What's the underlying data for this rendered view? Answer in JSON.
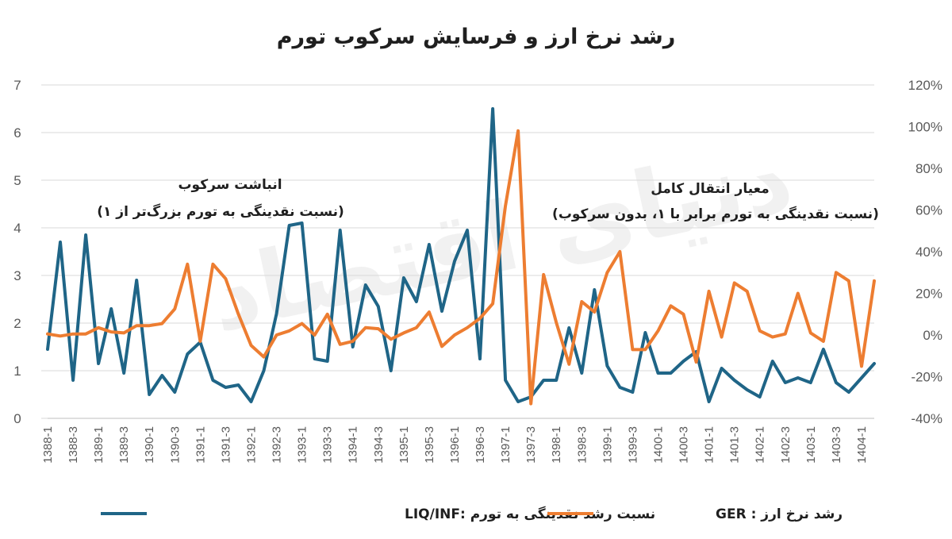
{
  "chart_data": {
    "type": "line",
    "title": "رشد نرخ ارز و فرسایش سرکوب تورم",
    "categories": [
      "1388-1",
      "1388-2",
      "1388-3",
      "1388-4",
      "1389-1",
      "1389-2",
      "1389-3",
      "1389-4",
      "1390-1",
      "1390-2",
      "1390-3",
      "1390-4",
      "1391-1",
      "1391-2",
      "1391-3",
      "1391-4",
      "1392-1",
      "1392-2",
      "1392-3",
      "1392-4",
      "1393-1",
      "1393-2",
      "1393-3",
      "1393-4",
      "1394-1",
      "1394-2",
      "1394-3",
      "1394-4",
      "1395-1",
      "1395-2",
      "1395-3",
      "1395-4",
      "1396-1",
      "1396-2",
      "1396-3",
      "1396-4",
      "1397-1",
      "1397-2",
      "1397-3",
      "1397-4",
      "1398-1",
      "1398-2",
      "1398-3",
      "1398-4",
      "1399-1",
      "1399-2",
      "1399-3",
      "1399-4",
      "1400-1",
      "1400-2",
      "1400-3",
      "1400-4",
      "1401-1",
      "1401-2",
      "1401-3",
      "1401-4",
      "1402-1",
      "1402-2",
      "1402-3",
      "1402-4",
      "1403-1",
      "1403-2",
      "1403-3",
      "1403-4",
      "1404-1",
      "1404-2"
    ],
    "x_tick_labels": [
      "1388-1",
      "1388-3",
      "1389-1",
      "1389-3",
      "1390-1",
      "1390-3",
      "1391-1",
      "1391-3",
      "1392-1",
      "1392-3",
      "1393-1",
      "1393-3",
      "1394-1",
      "1394-3",
      "1395-1",
      "1395-3",
      "1396-1",
      "1396-3",
      "1397-1",
      "1397-3",
      "1398-1",
      "1398-3",
      "1399-1",
      "1399-3",
      "1400-1",
      "1400-3",
      "1401-1",
      "1401-3",
      "1402-1",
      "1402-3",
      "1403-1",
      "1403-3",
      "1404-1"
    ],
    "y_left": {
      "min": 0,
      "max": 7,
      "ticks": [
        "0",
        "1",
        "2",
        "3",
        "4",
        "5",
        "6",
        "7"
      ]
    },
    "y_right": {
      "min": -40,
      "max": 120,
      "ticks": [
        "-40%",
        "-20%",
        "0%",
        "20%",
        "40%",
        "60%",
        "80%",
        "100%",
        "120%"
      ]
    },
    "grid": true,
    "legend_position": "bottom",
    "series": [
      {
        "name": "نسبت رشد نقدینگی به تورم :LIQ/INF",
        "axis": "left",
        "color": "#1f6587",
        "values": [
          1.45,
          3.7,
          0.8,
          3.85,
          1.15,
          2.3,
          0.95,
          2.9,
          0.5,
          0.9,
          0.55,
          1.35,
          1.6,
          0.8,
          0.65,
          0.7,
          0.35,
          1.0,
          2.2,
          4.05,
          4.1,
          1.25,
          1.2,
          3.95,
          1.5,
          2.8,
          2.35,
          1.0,
          2.95,
          2.45,
          3.65,
          2.25,
          3.3,
          3.95,
          1.25,
          6.5,
          0.8,
          0.35,
          0.45,
          0.8,
          0.8,
          1.9,
          0.95,
          2.7,
          1.1,
          0.65,
          0.55,
          1.8,
          0.95,
          0.95,
          1.2,
          1.4,
          0.35,
          1.05,
          0.8,
          0.6,
          0.45,
          1.2,
          0.75,
          0.85,
          0.75,
          1.45,
          0.75,
          0.55,
          0.85,
          1.15
        ]
      },
      {
        "name": "رشد نرخ ارز : GER",
        "axis": "right",
        "color": "#ed7d31",
        "values": [
          0.5,
          -0.5,
          0.5,
          0.5,
          3.5,
          1.5,
          1.0,
          4.5,
          4.5,
          5.5,
          12.5,
          34.0,
          -3.0,
          34.0,
          27.0,
          10.0,
          -5.0,
          -10.5,
          0.0,
          2.0,
          5.5,
          0.0,
          10.0,
          -4.5,
          -3.0,
          3.5,
          3.0,
          -2.0,
          1.0,
          3.5,
          11.0,
          -5.5,
          0.0,
          3.5,
          8.0,
          15.0,
          62.0,
          98.0,
          -33.0,
          29.0,
          6.0,
          -14.0,
          16.0,
          11.0,
          30.0,
          40.0,
          -7.0,
          -7.0,
          2.0,
          14.0,
          10.0,
          -13.0,
          21.0,
          -1.0,
          25.0,
          21.0,
          2.0,
          -1.0,
          0.5,
          20.0,
          1.0,
          -3.0,
          30.0,
          26.0,
          -15.0,
          26.0
        ]
      }
    ],
    "annotations": [
      {
        "line1": "انباشت سرکوب",
        "line2": "(نسبت نقدینگی به تورم بزرگ‌تر از ۱)"
      },
      {
        "line1": "معیار انتقال کامل",
        "line2": "(نسبت نقدینگی به تورم برابر با ۱، بدون سرکوب)"
      }
    ],
    "watermark": "دنیای اقتصاد"
  }
}
